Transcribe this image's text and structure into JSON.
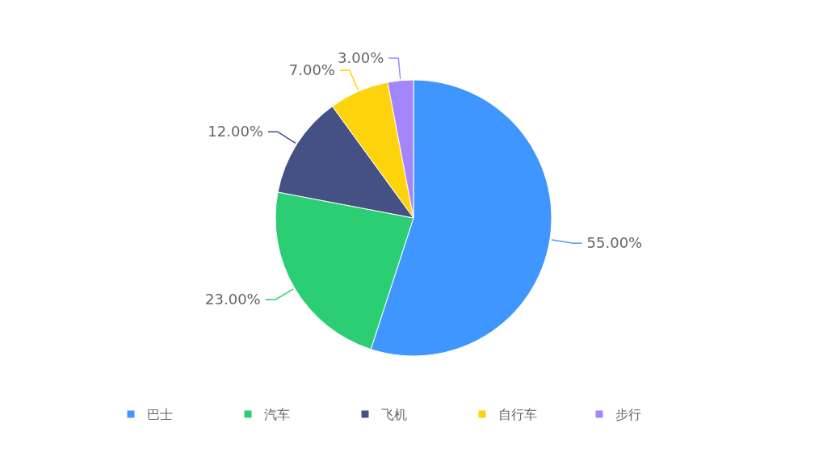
{
  "chart_data": {
    "type": "pie",
    "categories": [
      "巴士",
      "汽车",
      "飞机",
      "自行车",
      "步行"
    ],
    "values": [
      55,
      23,
      12,
      7,
      3
    ],
    "colors": [
      "#4096ff",
      "#2bce72",
      "#455084",
      "#fed30b",
      "#a485fb"
    ],
    "value_labels": [
      "55.00%",
      "23.00%",
      "12.00%",
      "7.00%",
      "3.00%"
    ],
    "legend": "bottom"
  }
}
